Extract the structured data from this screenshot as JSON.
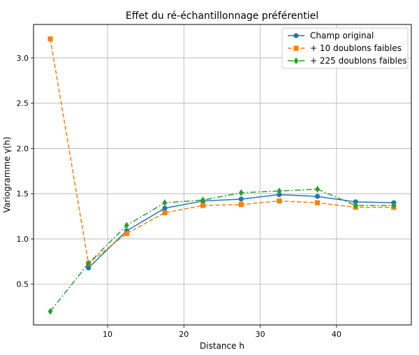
{
  "chart_data": {
    "type": "line",
    "title": "Effet du ré-échantillonnage préférentiel",
    "xlabel": "Distance h",
    "ylabel": "Variogramme γ(h)",
    "xlim": [
      0.3,
      49.8
    ],
    "ylim": [
      0.05,
      3.37
    ],
    "xticks": [
      10,
      20,
      30,
      40
    ],
    "yticks": [
      0.5,
      1.0,
      1.5,
      2.0,
      2.5,
      3.0
    ],
    "ytick_labels": [
      "0.5",
      "1.0",
      "1.5",
      "2.0",
      "2.5",
      "3.0"
    ],
    "grid": true,
    "legend_position": "top-right",
    "series": [
      {
        "name": "Champ original",
        "color": "#1f77b4",
        "linestyle": "solid",
        "marker": "circle",
        "x": [
          7.5,
          12.5,
          17.5,
          22.5,
          27.5,
          32.5,
          37.5,
          42.5,
          47.5
        ],
        "y": [
          0.68,
          1.09,
          1.34,
          1.42,
          1.44,
          1.49,
          1.47,
          1.41,
          1.4
        ]
      },
      {
        "name": "+ 10 doublons faibles",
        "color": "#ff7f0e",
        "linestyle": "dashed",
        "marker": "square",
        "x": [
          2.5,
          7.5,
          12.5,
          17.5,
          22.5,
          27.5,
          32.5,
          37.5,
          42.5,
          47.5
        ],
        "y": [
          3.21,
          0.73,
          1.06,
          1.29,
          1.37,
          1.38,
          1.42,
          1.4,
          1.35,
          1.35
        ]
      },
      {
        "name": "+ 225 doublons faibles",
        "color": "#2ca02c",
        "linestyle": "dashdot",
        "marker": "diamond",
        "x": [
          2.5,
          7.5,
          12.5,
          17.5,
          22.5,
          27.5,
          32.5,
          37.5,
          42.5,
          47.5
        ],
        "y": [
          0.2,
          0.73,
          1.15,
          1.4,
          1.43,
          1.51,
          1.53,
          1.55,
          1.37,
          1.37
        ]
      }
    ]
  }
}
